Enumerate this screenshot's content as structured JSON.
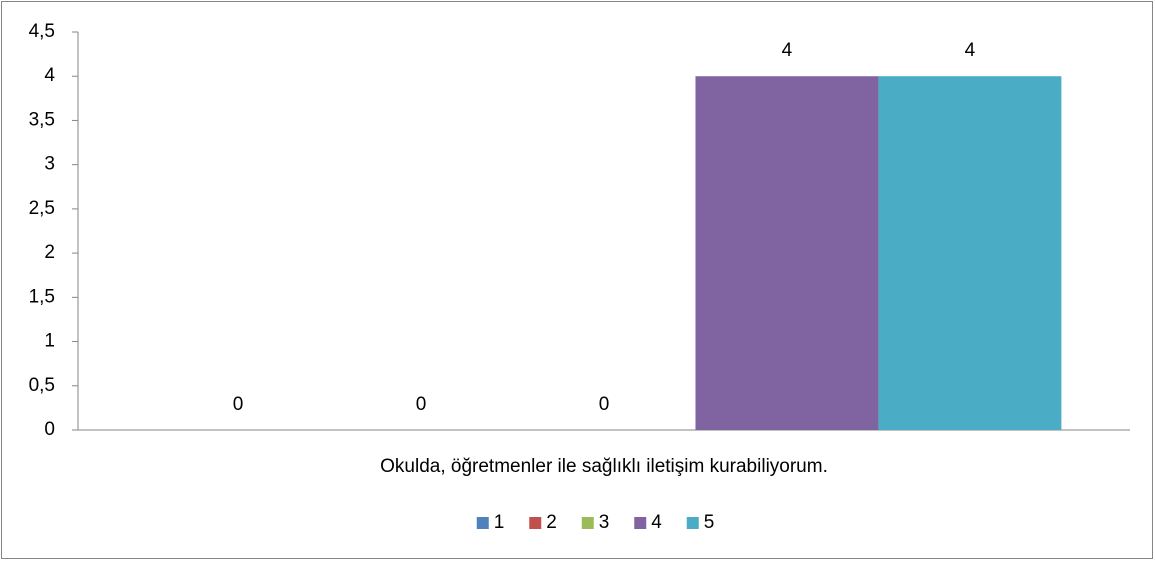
{
  "chart_data": {
    "type": "bar",
    "categories": [
      "Okulda, öğretmenler ile sağlıklı iletişim kurabiliyorum."
    ],
    "series": [
      {
        "name": "1",
        "color": "#4f81bd",
        "values": [
          0
        ]
      },
      {
        "name": "2",
        "color": "#c0504d",
        "values": [
          0
        ]
      },
      {
        "name": "3",
        "color": "#9bbb59",
        "values": [
          0
        ]
      },
      {
        "name": "4",
        "color": "#8064a2",
        "values": [
          4
        ]
      },
      {
        "name": "5",
        "color": "#4bacc6",
        "values": [
          4
        ]
      }
    ],
    "ylim": [
      0,
      4.5
    ],
    "yticks": [
      0,
      {
        "value": 0.5,
        "label": "0,5"
      },
      1,
      {
        "value": 1.5,
        "label": "1,5"
      },
      2,
      {
        "value": 2.5,
        "label": "2,5"
      },
      3,
      {
        "value": 3.5,
        "label": "3,5"
      },
      4,
      {
        "value": 4.5,
        "label": "4,5"
      }
    ],
    "grid": false,
    "legend": "bottom"
  }
}
